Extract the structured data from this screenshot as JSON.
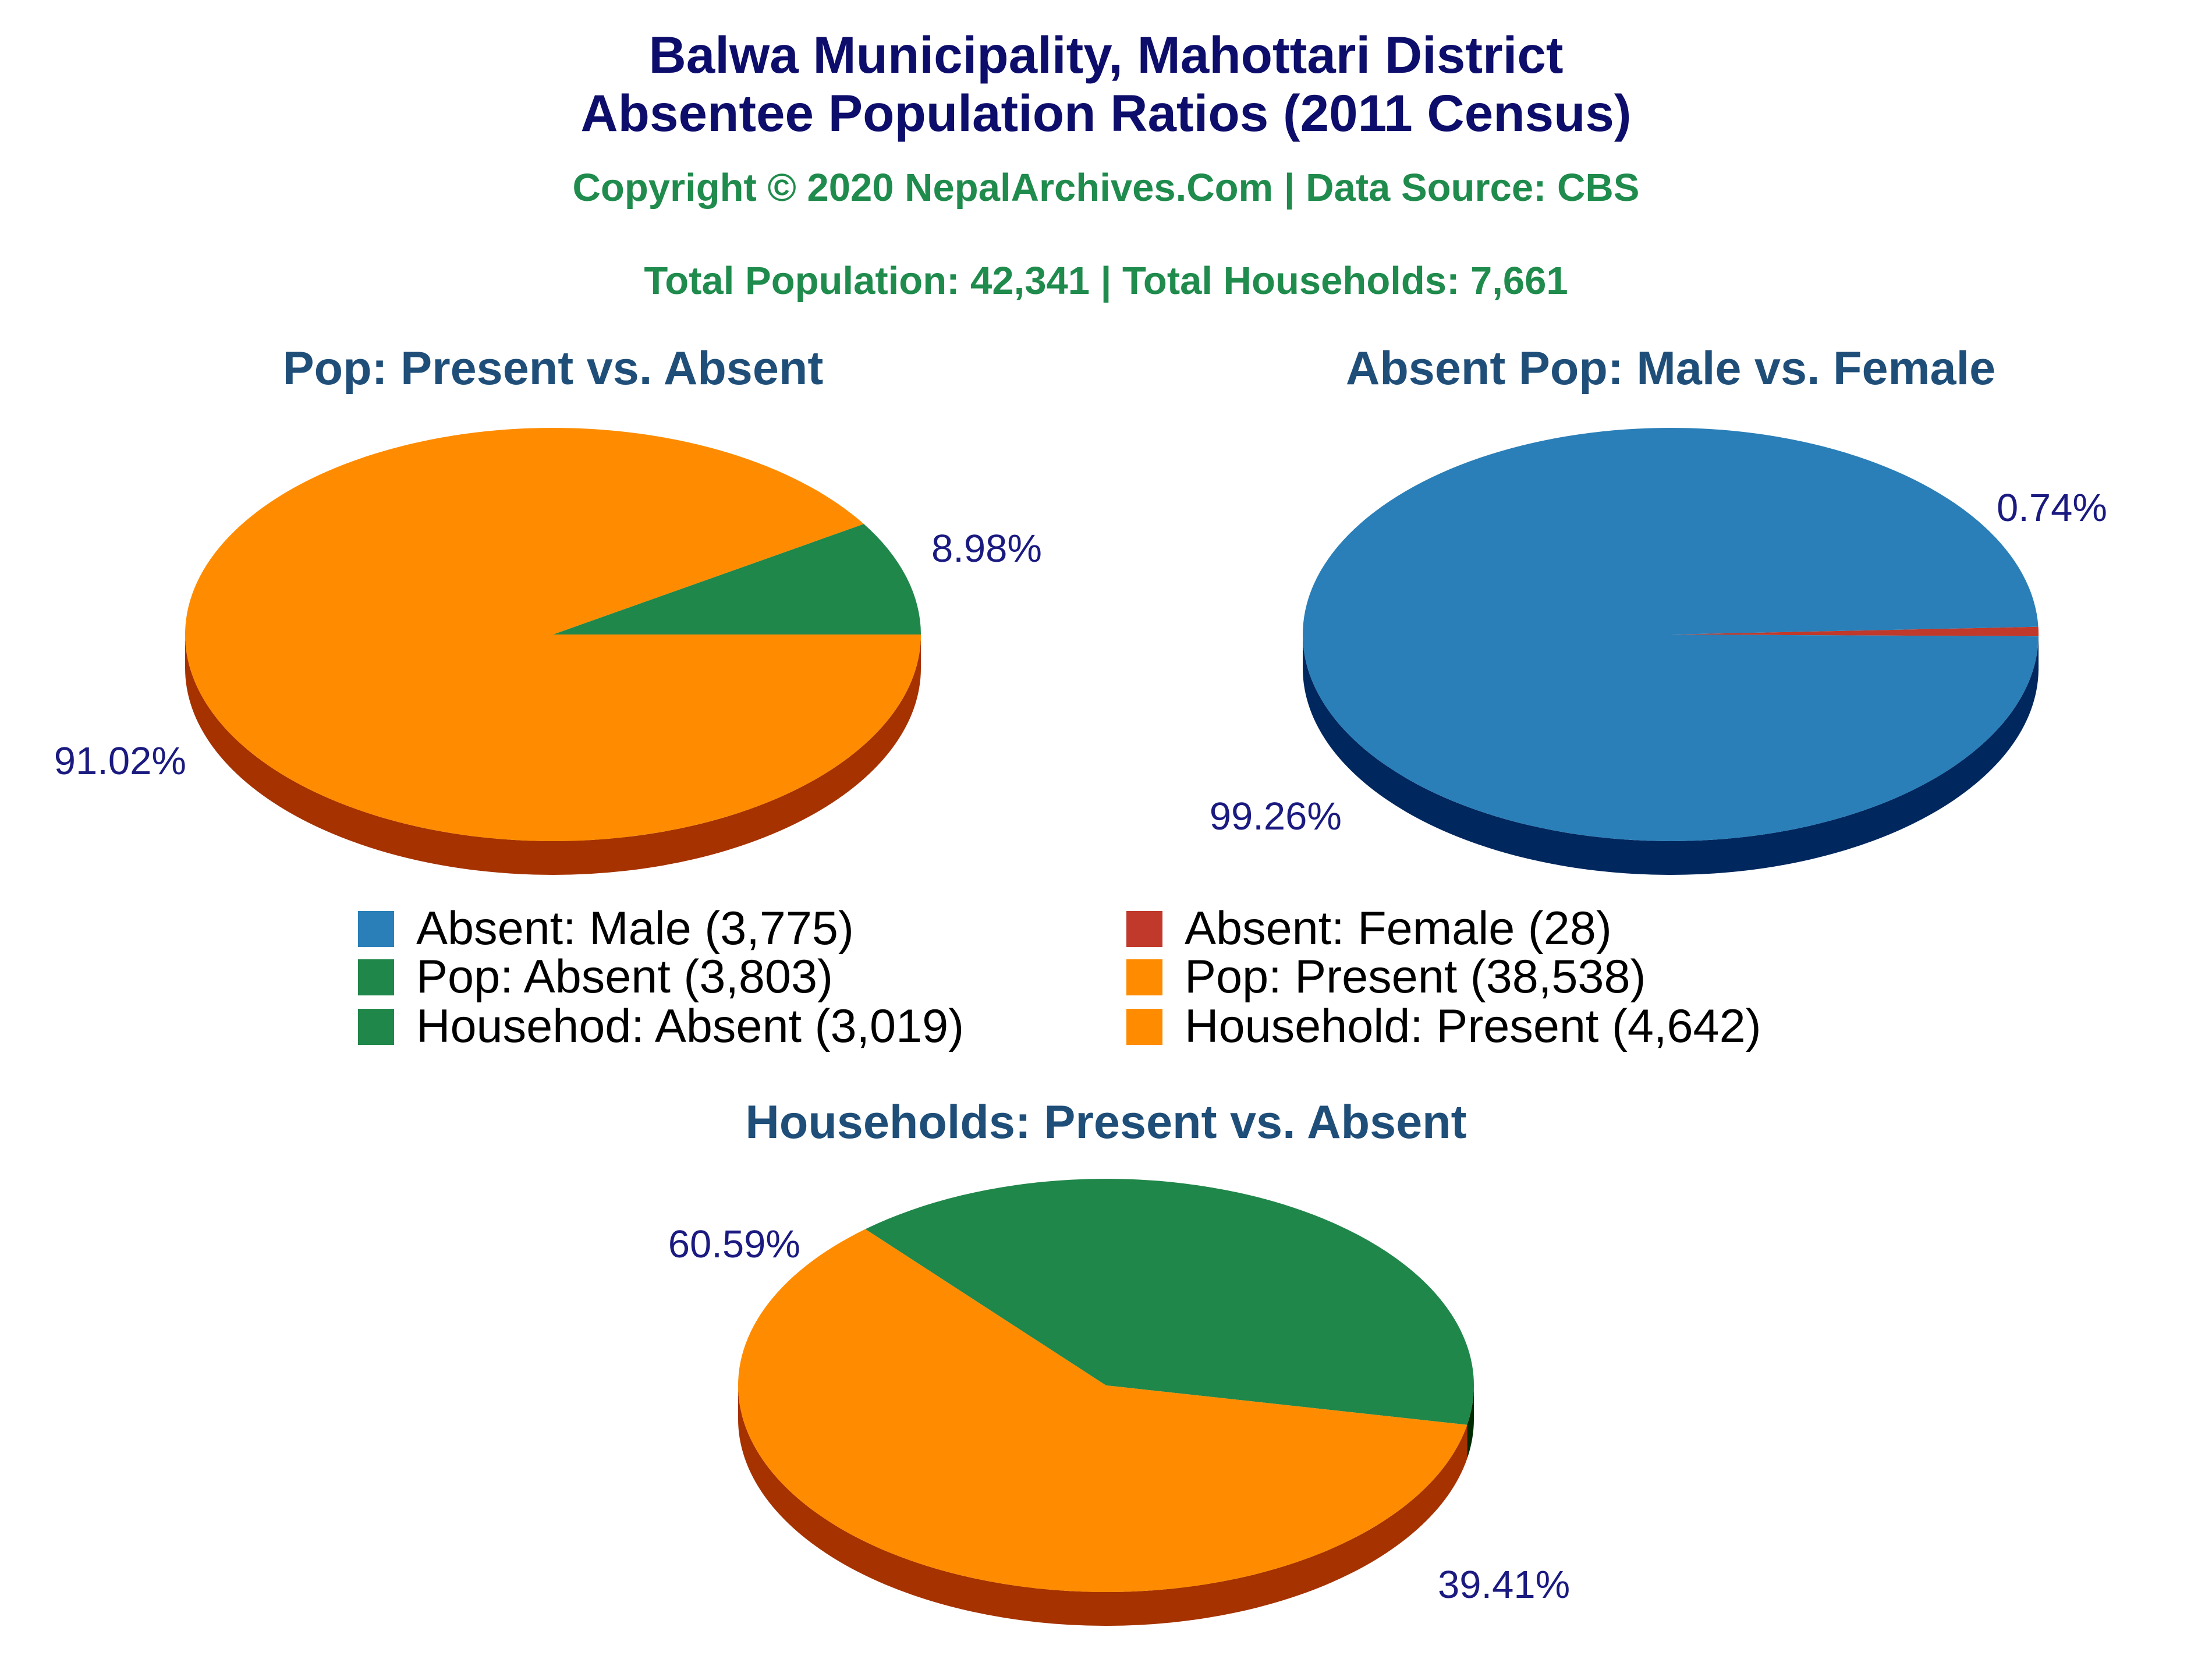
{
  "titles": {
    "line1": "Balwa Municipality, Mahottari District",
    "line2": "Absentee Population Ratios (2011 Census)",
    "copyright": "Copyright © 2020 NepalArchives.Com | Data Source: CBS",
    "totals": "Total Population: 42,341 | Total Households: 7,661"
  },
  "chart_data": [
    {
      "type": "pie",
      "title": "Pop: Present vs. Absent",
      "slices": [
        {
          "label": "Pop: Absent",
          "value": 3803,
          "percent_label": "8.98%",
          "color": "#20874a",
          "side_color": "#0c3b19"
        },
        {
          "label": "Pop: Present",
          "value": 38538,
          "percent_label": "91.02%",
          "color": "#ff8c00",
          "side_color": "#a63200"
        }
      ]
    },
    {
      "type": "pie",
      "title": "Absent Pop: Male vs. Female",
      "slices": [
        {
          "label": "Absent: Female",
          "value": 28,
          "percent_label": "0.74%",
          "color": "#c0392b",
          "side_color": "#6e1510"
        },
        {
          "label": "Absent: Male",
          "value": 3775,
          "percent_label": "99.26%",
          "color": "#2a7fb8",
          "side_color": "#00275e"
        }
      ]
    },
    {
      "type": "pie",
      "title": "Households: Present vs. Absent",
      "slices": [
        {
          "label": "Househod: Absent",
          "value": 3019,
          "percent_label": "39.41%",
          "color": "#20874a",
          "side_color": "#002a00"
        },
        {
          "label": "Household: Present",
          "value": 4642,
          "percent_label": "60.59%",
          "color": "#ff8c00",
          "side_color": "#a63200"
        }
      ]
    }
  ],
  "legend": [
    {
      "label": "Absent: Male (3,775)",
      "color": "#2a7fb8"
    },
    {
      "label": "Absent: Female (28)",
      "color": "#c0392b"
    },
    {
      "label": "Pop: Absent (3,803)",
      "color": "#20874a"
    },
    {
      "label": "Pop: Present (38,538)",
      "color": "#ff8c00"
    },
    {
      "label": "Househod: Absent (3,019)",
      "color": "#20874a"
    },
    {
      "label": "Household: Present (4,642)",
      "color": "#ff8c00"
    }
  ]
}
